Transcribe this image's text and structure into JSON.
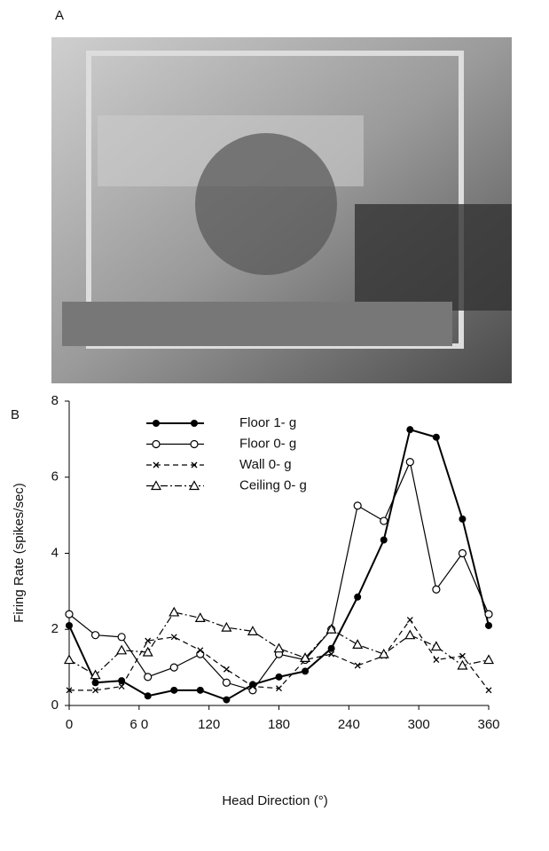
{
  "panels": {
    "a": "A",
    "b": "B"
  },
  "chart_data": {
    "type": "line",
    "x_label": "Head Direction (°)",
    "y_label": "Firing Rate (spikes/sec)",
    "x": [
      0,
      22.5,
      45,
      67.5,
      90,
      112.5,
      135,
      157.5,
      180,
      202.5,
      225,
      247.5,
      270,
      292.5,
      315,
      337.5,
      360
    ],
    "series": [
      {
        "name": "Floor 1- g",
        "color": "#000000",
        "marker": "filled-circle",
        "dash": "solid",
        "width": 2,
        "values": [
          2.1,
          0.6,
          0.65,
          0.25,
          0.4,
          0.4,
          0.15,
          0.55,
          0.75,
          0.9,
          1.5,
          2.85,
          4.35,
          7.25,
          7.05,
          4.9,
          2.1
        ]
      },
      {
        "name": "Floor 0- g",
        "color": "#000000",
        "marker": "open-circle",
        "dash": "solid",
        "width": 1.2,
        "values": [
          2.4,
          1.85,
          1.8,
          0.75,
          1.0,
          1.35,
          0.6,
          0.4,
          1.35,
          1.2,
          2.0,
          5.25,
          4.85,
          6.4,
          3.05,
          4.0,
          2.4
        ]
      },
      {
        "name": "Wall 0- g",
        "color": "#000000",
        "marker": "cross",
        "dash": "dashed",
        "width": 1.2,
        "values": [
          0.4,
          0.4,
          0.5,
          1.7,
          1.8,
          1.45,
          0.95,
          0.5,
          0.45,
          1.2,
          1.35,
          1.05,
          1.3,
          2.25,
          1.2,
          1.3,
          0.4
        ]
      },
      {
        "name": "Ceiling 0- g",
        "color": "#000000",
        "marker": "open-triangle",
        "dash": "dash-dot",
        "width": 1.2,
        "values": [
          1.2,
          0.8,
          1.45,
          1.4,
          2.45,
          2.3,
          2.05,
          1.95,
          1.5,
          1.25,
          2.0,
          1.6,
          1.35,
          1.85,
          1.55,
          1.05,
          1.2
        ]
      }
    ],
    "xlim": [
      0,
      360
    ],
    "xticks": [
      0,
      {
        "value": 60,
        "label": "6 0"
      },
      120,
      180,
      240,
      300,
      360
    ],
    "ylim": [
      0,
      8
    ],
    "yticks": [
      0,
      2,
      4,
      6,
      8
    ],
    "grid": false,
    "legend": "upper left"
  }
}
